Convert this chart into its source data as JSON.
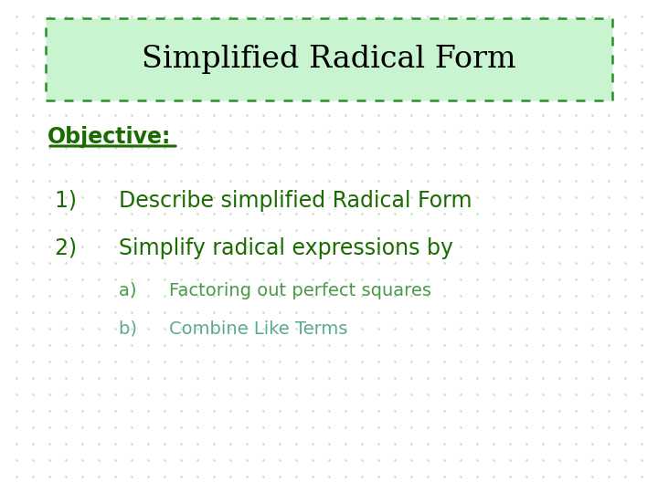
{
  "title": "Simplified Radical Form",
  "title_bg_color": "#c8f5d0",
  "title_border_color": "#2e8b2e",
  "title_text_color": "#000000",
  "background_color": "#ffffff",
  "dot_color": "#c8e8c8",
  "objective_label": "Objective:",
  "objective_color": "#1a6b00",
  "items": [
    {
      "num": "1)  ",
      "text": "Describe simplified Radical Form",
      "color": "#1a6b00"
    },
    {
      "num": "2)  ",
      "text": "Simplify radical expressions by",
      "color": "#1a6b00"
    }
  ],
  "subitems": [
    {
      "label": "a)  ",
      "text": "Factoring out perfect squares",
      "color": "#4a9a4a"
    },
    {
      "label": "b)  ",
      "text": "Combine Like Terms",
      "color": "#5aaa90"
    }
  ],
  "title_fontsize": 24,
  "objective_fontsize": 17,
  "item_fontsize": 17,
  "subitem_fontsize": 14
}
